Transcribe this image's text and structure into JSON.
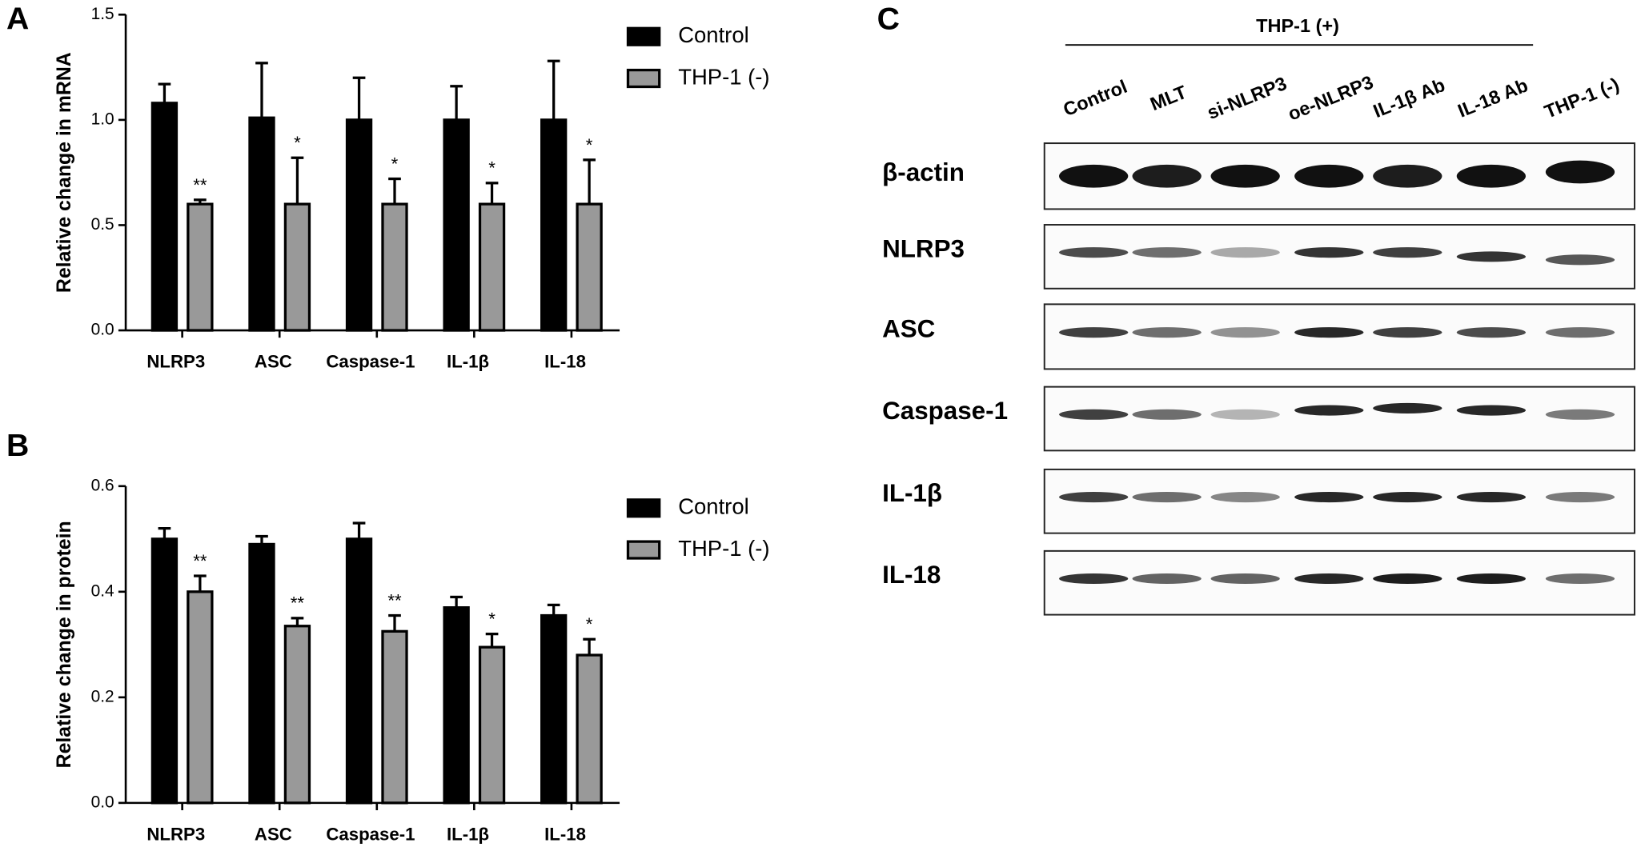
{
  "chart_data": [
    {
      "type": "bar",
      "panel": "A",
      "ylabel": "Relative change in mRNA",
      "categories": [
        "NLRP3",
        "ASC",
        "Caspase-1",
        "IL-1β",
        "IL-18"
      ],
      "series": [
        {
          "name": "Control",
          "color": "#000000",
          "values": [
            1.08,
            1.01,
            1.0,
            1.0,
            1.0
          ],
          "errors": [
            0.09,
            0.26,
            0.2,
            0.16,
            0.28
          ]
        },
        {
          "name": "THP-1 (-)",
          "color": "#999999",
          "values": [
            0.6,
            0.6,
            0.6,
            0.6,
            0.6
          ],
          "errors": [
            0.02,
            0.22,
            0.12,
            0.1,
            0.21
          ],
          "labels": [
            "**",
            "*",
            "*",
            "*",
            "*"
          ]
        }
      ],
      "ylim": [
        0,
        1.5
      ],
      "yticks": [
        {
          "value": 0,
          "label": "0.0"
        },
        0.5,
        {
          "value": 1,
          "label": "1.0"
        },
        1.5
      ]
    },
    {
      "type": "bar",
      "panel": "B",
      "ylabel": "Relative change in protein",
      "categories": [
        "NLRP3",
        "ASC",
        "Caspase-1",
        "IL-1β",
        "IL-18"
      ],
      "series": [
        {
          "name": "Control",
          "color": "#000000",
          "values": [
            0.5,
            0.49,
            0.5,
            0.37,
            0.355
          ],
          "errors": [
            0.02,
            0.015,
            0.03,
            0.02,
            0.02
          ]
        },
        {
          "name": "THP-1 (-)",
          "color": "#999999",
          "values": [
            0.4,
            0.335,
            0.325,
            0.295,
            0.28
          ],
          "errors": [
            0.03,
            0.015,
            0.03,
            0.025,
            0.03
          ],
          "labels": [
            "**",
            "**",
            "**",
            "*",
            "*"
          ]
        }
      ],
      "ylim": [
        0,
        0.6
      ],
      "yticks": [
        {
          "value": 0,
          "label": "0.0"
        },
        0.2,
        0.4,
        0.6
      ]
    }
  ],
  "blot": {
    "panel": "C",
    "group_label": "THP-1 (+)",
    "lanes": [
      "Control",
      "MLT",
      "si-NLRP3",
      "oe-NLRP3",
      "IL-1β Ab",
      "IL-18 Ab",
      "THP-1 (-)"
    ],
    "rows": [
      "β-actin",
      "NLRP3",
      "ASC",
      "Caspase-1",
      "IL-1β",
      "IL-18"
    ]
  }
}
